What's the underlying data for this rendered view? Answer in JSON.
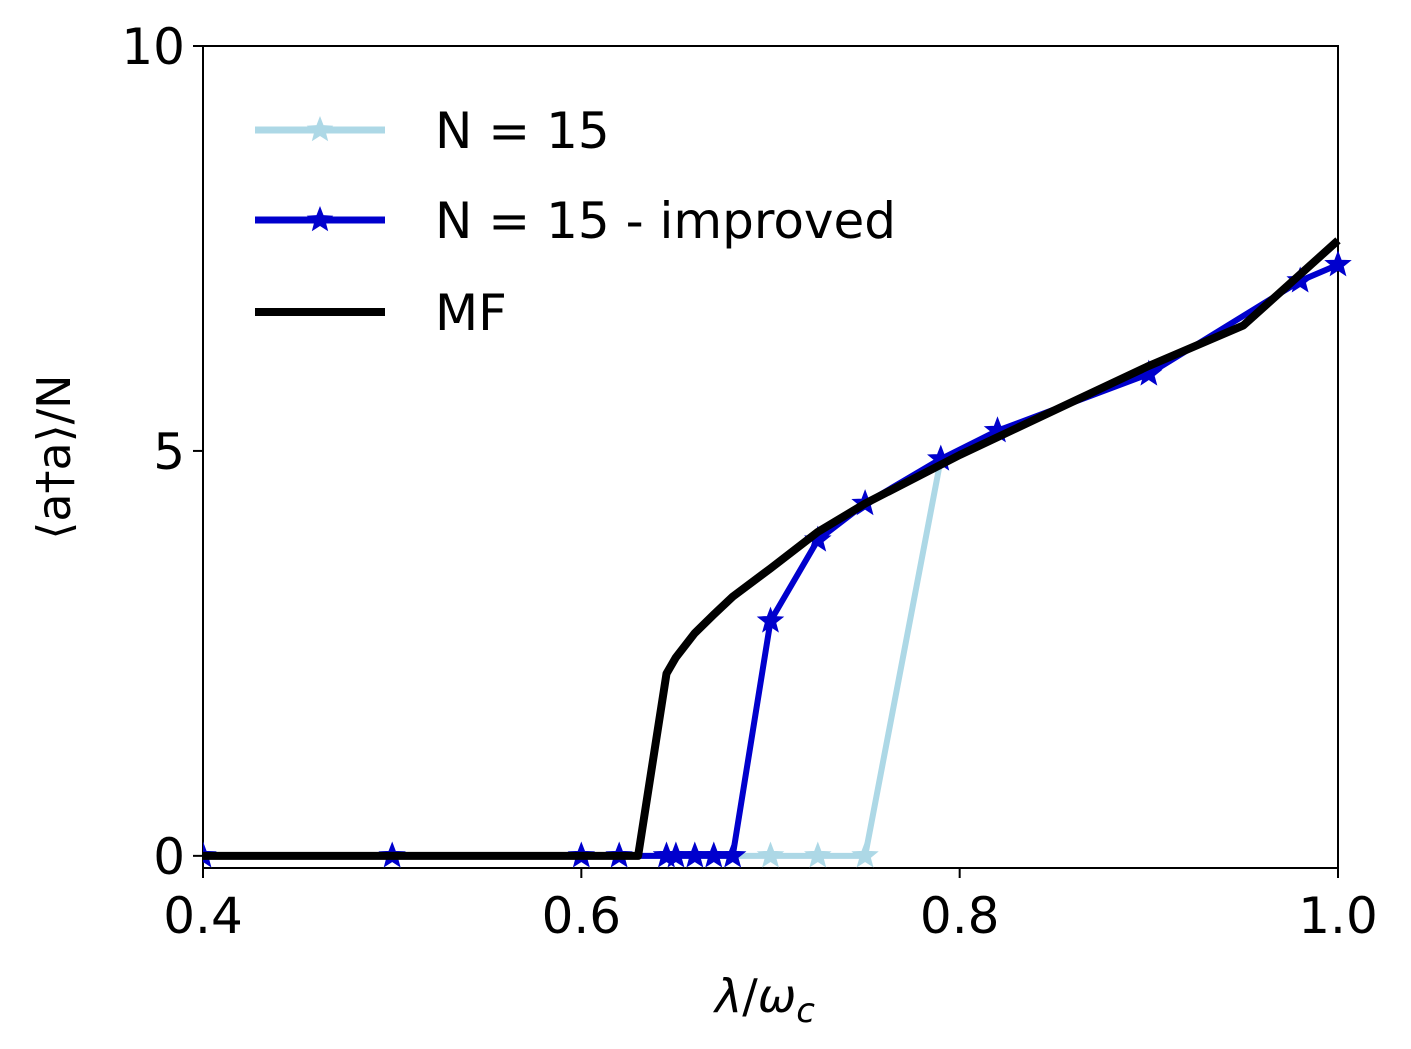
{
  "chart_data": {
    "type": "line",
    "xlabel": "λ/ω_c",
    "ylabel": "⟨a†a⟩/N",
    "xlim": [
      0.4,
      1.0
    ],
    "ylim": [
      -0.15,
      10
    ],
    "xticks": [
      0.4,
      0.6,
      0.8,
      1.0
    ],
    "xtick_labels": [
      "0.4",
      "0.6",
      "0.8",
      "1.0"
    ],
    "yticks": [
      0,
      5,
      10
    ],
    "ytick_labels": [
      "0",
      "5",
      "10"
    ],
    "legend_position": "top-left",
    "series": [
      {
        "name": "N = 15",
        "color": "#add8e6",
        "marker": "star",
        "x": [
          0.4,
          0.5,
          0.6,
          0.62,
          0.645,
          0.65,
          0.66,
          0.67,
          0.68,
          0.7,
          0.725,
          0.75,
          0.79
        ],
        "y": [
          0,
          0,
          0,
          0,
          0,
          0,
          0,
          0,
          0,
          0,
          0,
          0,
          4.9
        ]
      },
      {
        "name": "N = 15 - improved",
        "color": "#0000cd",
        "marker": "star",
        "x": [
          0.4,
          0.5,
          0.6,
          0.62,
          0.645,
          0.65,
          0.66,
          0.67,
          0.68,
          0.7,
          0.725,
          0.75,
          0.79,
          0.82,
          0.9,
          0.98,
          1.0
        ],
        "y": [
          0,
          0,
          0,
          0,
          0,
          0,
          0,
          0,
          0,
          2.9,
          3.9,
          4.35,
          4.9,
          5.25,
          5.95,
          7.1,
          7.3
        ]
      },
      {
        "name": "MF",
        "color": "#000000",
        "marker": "none",
        "x": [
          0.4,
          0.63,
          0.645,
          0.65,
          0.66,
          0.67,
          0.68,
          0.7,
          0.725,
          0.75,
          0.8,
          0.85,
          0.9,
          0.95,
          1.0
        ],
        "y": [
          0,
          0,
          2.25,
          2.45,
          2.75,
          2.98,
          3.2,
          3.55,
          4.0,
          4.35,
          4.95,
          5.5,
          6.05,
          6.55,
          7.6
        ]
      }
    ]
  }
}
